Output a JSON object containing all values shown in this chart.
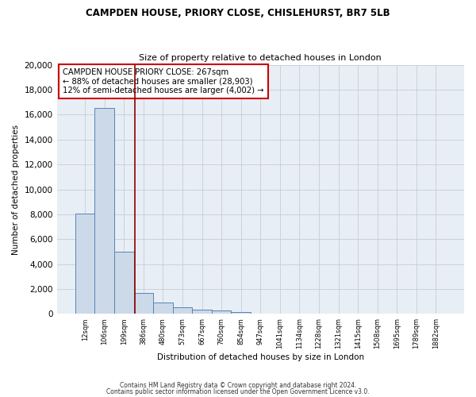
{
  "title1": "CAMPDEN HOUSE, PRIORY CLOSE, CHISLEHURST, BR7 5LB",
  "title2": "Size of property relative to detached houses in London",
  "xlabel": "Distribution of detached houses by size in London",
  "ylabel": "Number of detached properties",
  "categories": [
    "12sqm",
    "106sqm",
    "199sqm",
    "386sqm",
    "480sqm",
    "573sqm",
    "667sqm",
    "760sqm",
    "854sqm",
    "947sqm",
    "1041sqm",
    "1134sqm",
    "1228sqm",
    "1321sqm",
    "1415sqm",
    "1508sqm",
    "1695sqm",
    "1789sqm",
    "1882sqm"
  ],
  "values": [
    8050,
    16500,
    5000,
    1700,
    950,
    530,
    370,
    270,
    180,
    0,
    0,
    0,
    0,
    0,
    0,
    0,
    0,
    0,
    0
  ],
  "bar_color": "#ccd9e8",
  "bar_edge_color": "#5585b5",
  "annotation_text": "CAMPDEN HOUSE PRIORY CLOSE: 267sqm\n← 88% of detached houses are smaller (28,903)\n12% of semi-detached houses are larger (4,002) →",
  "annotation_box_color": "white",
  "annotation_border_color": "#cc0000",
  "vline_color": "#8b0000",
  "vline_x": 2.55,
  "footer_text1": "Contains HM Land Registry data © Crown copyright and database right 2024.",
  "footer_text2": "Contains public sector information licensed under the Open Government Licence v3.0.",
  "ylim": [
    0,
    20000
  ],
  "yticks": [
    0,
    2000,
    4000,
    6000,
    8000,
    10000,
    12000,
    14000,
    16000,
    18000,
    20000
  ],
  "bg_color": "#e8eef5",
  "grid_color": "#c5cdd8"
}
